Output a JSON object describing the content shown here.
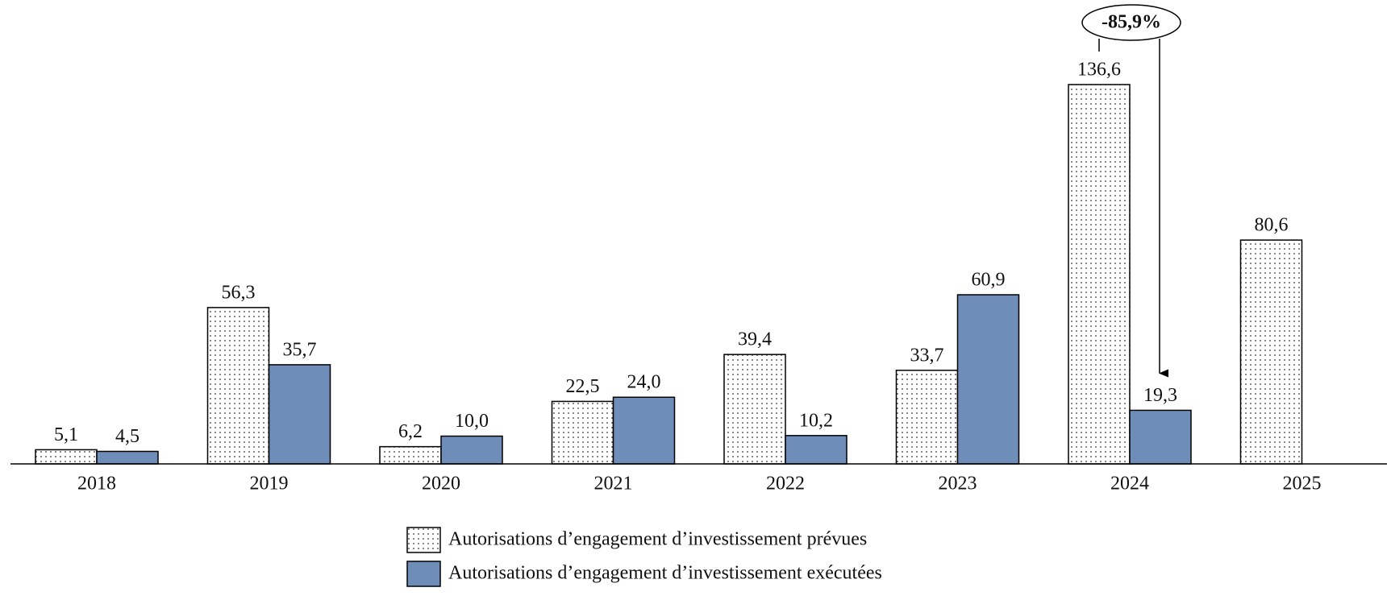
{
  "chart_data": {
    "type": "bar",
    "categories": [
      "2018",
      "2019",
      "2020",
      "2021",
      "2022",
      "2023",
      "2024",
      "2025"
    ],
    "series": [
      {
        "name": "Autorisations d’engagement d’investissement prévues",
        "color": "#ffffff",
        "pattern": "dotted",
        "values": [
          5.1,
          56.3,
          6.2,
          22.5,
          39.4,
          33.7,
          136.6,
          80.6
        ],
        "value_labels": [
          "5,1",
          "56,3",
          "6,2",
          "22,5",
          "39,4",
          "33,7",
          "136,6",
          "80,6"
        ]
      },
      {
        "name": "Autorisations d’engagement d’investissement exécutées",
        "color": "#6e8db8",
        "values": [
          4.5,
          35.7,
          10.0,
          24.0,
          10.2,
          60.9,
          19.3,
          null
        ],
        "value_labels": [
          "4,5",
          "35,7",
          "10,0",
          "24,0",
          "10,2",
          "60,9",
          "19,3",
          null
        ]
      }
    ],
    "annotations": [
      {
        "text": "-85,9%"
      }
    ],
    "legend": "bottom"
  }
}
